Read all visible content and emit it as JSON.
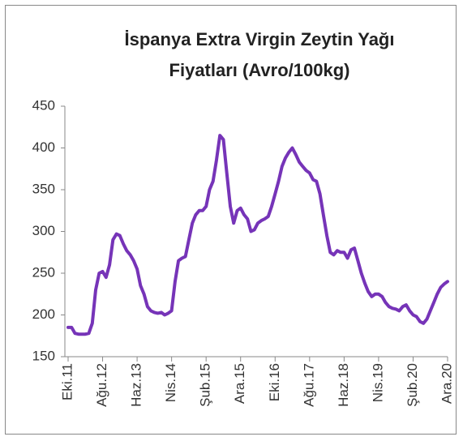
{
  "chart_data": {
    "type": "line",
    "title": "İspanya Extra Virgin Zeytin Yağı Fiyatları (Avro/100kg)",
    "categories": [
      "Eki.11",
      null,
      null,
      null,
      null,
      null,
      null,
      null,
      null,
      null,
      "Ağu.12",
      null,
      null,
      null,
      null,
      null,
      null,
      null,
      null,
      null,
      "Haz.13",
      null,
      null,
      null,
      null,
      null,
      null,
      null,
      null,
      null,
      "Nis.14",
      null,
      null,
      null,
      null,
      null,
      null,
      null,
      null,
      null,
      "Şub.15",
      null,
      null,
      null,
      null,
      null,
      null,
      null,
      null,
      null,
      "Ara.15",
      null,
      null,
      null,
      null,
      null,
      null,
      null,
      null,
      null,
      "Eki.16",
      null,
      null,
      null,
      null,
      null,
      null,
      null,
      null,
      null,
      "Ağu.17",
      null,
      null,
      null,
      null,
      null,
      null,
      null,
      null,
      null,
      "Haz.18",
      null,
      null,
      null,
      null,
      null,
      null,
      null,
      null,
      null,
      "Nis.19",
      null,
      null,
      null,
      null,
      null,
      null,
      null,
      null,
      null,
      "Şub.20",
      null,
      null,
      null,
      null,
      null,
      null,
      null,
      null,
      null,
      "Ara.20"
    ],
    "series": [
      {
        "color": "#7634b8",
        "values": [
          185,
          185,
          178,
          177,
          177,
          177,
          178,
          190,
          230,
          250,
          252,
          245,
          260,
          290,
          297,
          295,
          285,
          277,
          272,
          265,
          255,
          235,
          225,
          210,
          205,
          203,
          202,
          203,
          200,
          202,
          205,
          240,
          265,
          268,
          270,
          290,
          310,
          320,
          325,
          325,
          330,
          350,
          360,
          385,
          415,
          410,
          370,
          330,
          310,
          325,
          328,
          320,
          315,
          300,
          302,
          310,
          313,
          315,
          318,
          330,
          345,
          360,
          378,
          388,
          395,
          400,
          392,
          383,
          378,
          373,
          370,
          362,
          360,
          345,
          320,
          295,
          275,
          272,
          277,
          275,
          275,
          268,
          278,
          280,
          265,
          250,
          238,
          228,
          222,
          225,
          225,
          222,
          215,
          210,
          208,
          207,
          205,
          210,
          212,
          205,
          200,
          198,
          192,
          190,
          195,
          205,
          215,
          225,
          233,
          237,
          240
        ]
      }
    ],
    "ylim": [
      150,
      450
    ],
    "yticks": [
      150,
      200,
      250,
      300,
      350,
      400,
      450
    ]
  }
}
